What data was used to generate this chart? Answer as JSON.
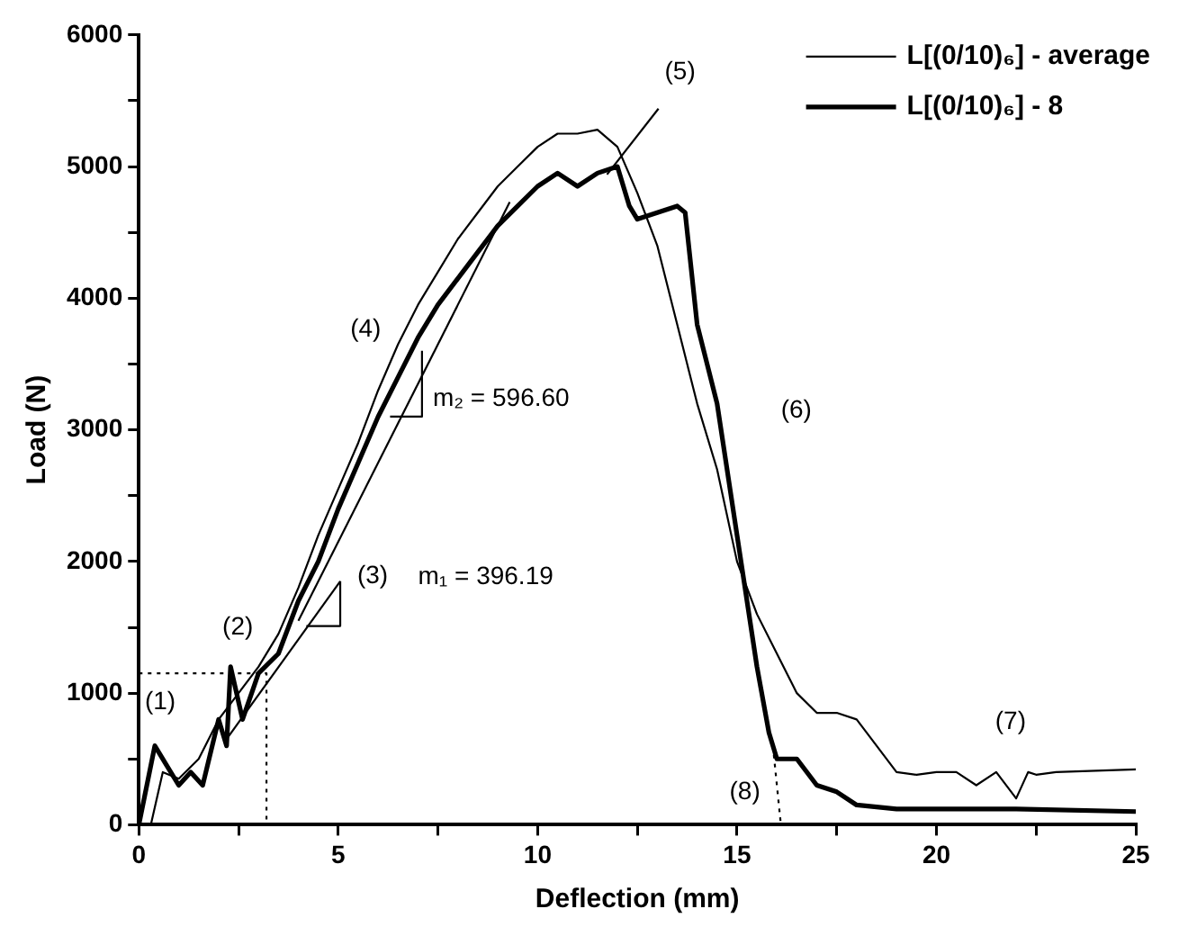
{
  "chart_data": {
    "type": "line",
    "xlabel": "Deflection (mm)",
    "ylabel": "Load (N)",
    "xlim": [
      0,
      25
    ],
    "ylim": [
      0,
      6000
    ],
    "xticks": [
      0,
      {
        "value": 2.5,
        "label": null
      },
      5,
      {
        "value": 7.5,
        "label": null
      },
      10,
      {
        "value": 12.5,
        "label": null
      },
      15,
      {
        "value": 17.5,
        "label": null
      },
      20,
      {
        "value": 22.5,
        "label": null
      },
      25
    ],
    "yticks": [
      0,
      {
        "value": 500,
        "label": null
      },
      1000,
      {
        "value": 1500,
        "label": null
      },
      2000,
      {
        "value": 2500,
        "label": null
      },
      3000,
      {
        "value": 3500,
        "label": null
      },
      4000,
      {
        "value": 4500,
        "label": null
      },
      5000,
      {
        "value": 5500,
        "label": null
      },
      6000
    ],
    "grid": false,
    "legend": "top right",
    "marker": "none",
    "series": [
      {
        "name": "L[(0/10)₆] - average",
        "color": "#000000",
        "x": [
          0.3,
          0.6,
          1,
          1.5,
          2,
          2.5,
          3,
          3.5,
          4,
          4.5,
          5,
          5.5,
          6,
          6.5,
          7,
          7.5,
          8,
          8.5,
          9,
          9.5,
          10,
          10.5,
          11,
          11.5,
          12,
          12.5,
          13,
          13.5,
          14,
          14.5,
          15,
          15.5,
          16,
          16.5,
          17,
          17.5,
          18,
          18.5,
          19,
          19.5,
          20,
          20.5,
          21,
          21.5,
          22,
          22.3,
          22.5,
          23,
          25
        ],
        "values": [
          0,
          400,
          350,
          500,
          800,
          1000,
          1200,
          1450,
          1800,
          2200,
          2550,
          2900,
          3300,
          3650,
          3950,
          4200,
          4450,
          4650,
          4850,
          5000,
          5150,
          5250,
          5250,
          5280,
          5150,
          4800,
          4400,
          3800,
          3200,
          2700,
          2000,
          1600,
          1300,
          1000,
          850,
          850,
          800,
          600,
          400,
          380,
          400,
          400,
          300,
          400,
          200,
          400,
          380,
          400,
          420
        ]
      },
      {
        "name": "L[(0/10)₆] - 8",
        "color": "#000000",
        "x": [
          0,
          0.4,
          0.7,
          1,
          1.3,
          1.6,
          2,
          2.2,
          2.3,
          2.6,
          3,
          3.5,
          4,
          4.5,
          5,
          5.5,
          6,
          6.5,
          7,
          7.5,
          8,
          8.5,
          9,
          9.5,
          10,
          10.5,
          11,
          11.5,
          12,
          12.3,
          12.5,
          13,
          13.5,
          13.7,
          14,
          14.5,
          15,
          15.5,
          15.8,
          16,
          16.5,
          17,
          17.5,
          18,
          19,
          20,
          22,
          25
        ],
        "values": [
          0,
          600,
          450,
          300,
          400,
          300,
          800,
          600,
          1200,
          800,
          1150,
          1300,
          1700,
          2000,
          2400,
          2750,
          3100,
          3400,
          3700,
          3950,
          4150,
          4350,
          4550,
          4700,
          4850,
          4950,
          4850,
          4950,
          5000,
          4700,
          4600,
          4650,
          4700,
          4650,
          3800,
          3200,
          2200,
          1200,
          700,
          500,
          500,
          300,
          250,
          150,
          120,
          120,
          120,
          100
        ]
      },
      {
        "color": "#000000",
        "x": [
          2.2,
          5.05
        ],
        "values": [
          650,
          1850
        ]
      },
      {
        "color": "#000000",
        "x": [
          4.2,
          5.05,
          5.05
        ],
        "values": [
          1510,
          1510,
          1850
        ]
      },
      {
        "color": "#000000",
        "x": [
          4,
          9.3
        ],
        "values": [
          1550,
          4730
        ]
      },
      {
        "color": "#000000",
        "x": [
          6.3,
          7.1,
          7.1
        ],
        "values": [
          3100,
          3100,
          3600
        ]
      },
      {
        "color": "#000000",
        "x": [
          11.74,
          13.03
        ],
        "values": [
          4940,
          5440
        ]
      },
      {
        "color": "#000000",
        "line_style": "dotted",
        "x": [
          0,
          3.2,
          3.2
        ],
        "values": [
          1150,
          1150,
          0
        ]
      },
      {
        "color": "#000000",
        "line_style": "dotted",
        "x": [
          15.9,
          16.1
        ],
        "values": [
          600,
          0
        ]
      }
    ],
    "annotations": [
      {
        "text": "(1)",
        "x": 0.4,
        "y": 600
      },
      {
        "text": "(2)",
        "x": 2.3,
        "y": 1200
      },
      {
        "text": "(3)",
        "x": 5.05,
        "y": 1850
      },
      {
        "text": "(4)",
        "x": 6.5,
        "y": 3650
      },
      {
        "text": "(5)",
        "x": 13.03,
        "y": 5440
      },
      {
        "text": "(6)",
        "x": 14.5,
        "y": 3200
      },
      {
        "text": "(7)",
        "x": 21.5,
        "y": 400
      },
      {
        "text": "(8)",
        "x": 16.1,
        "y": 0
      },
      {
        "text": "m₂ = 596.60",
        "x": 7.1,
        "y": 3100
      },
      "m₁ = 396.19"
    ]
  }
}
